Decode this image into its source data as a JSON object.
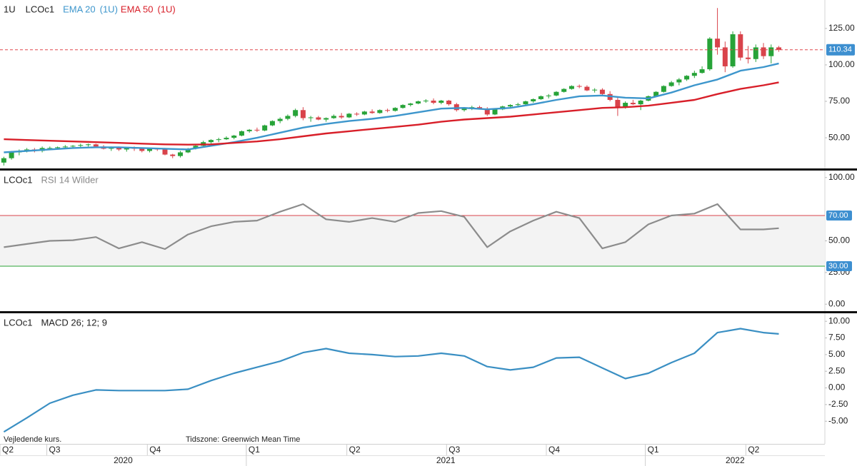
{
  "x_axis": {
    "xlim": [
      -0.5,
      107
    ],
    "xticks": [
      {
        "value": -0.5,
        "label": "Q2"
      },
      {
        "value": 5.6,
        "label": "Q3"
      },
      {
        "value": 18.7,
        "label": "Q4"
      },
      {
        "value": 31.6,
        "label": "Q1"
      },
      {
        "value": 44.7,
        "label": "Q2"
      },
      {
        "value": 57.7,
        "label": "Q3"
      },
      {
        "value": 70.7,
        "label": "Q4"
      },
      {
        "value": 83.6,
        "label": "Q1"
      },
      {
        "value": 96.7,
        "label": "Q2"
      }
    ],
    "years": [
      {
        "value": -13.5,
        "label": "2020"
      },
      {
        "value": 31.6,
        "label": "2021"
      },
      {
        "value": 83.6,
        "label": "2022"
      }
    ]
  },
  "notes": [
    "Vejledende kurs.",
    "Tidszone: Greenwich Mean Time"
  ],
  "chart_data": [
    {
      "type": "candlestick",
      "interval": "1U",
      "symbol": "LCOc1",
      "up_color": "#27a338",
      "down_color": "#d9434b",
      "ohlc": [
        [
          33,
          37,
          31,
          36
        ],
        [
          36,
          41,
          35,
          40
        ],
        [
          40,
          42,
          38,
          41
        ],
        [
          41,
          43,
          40,
          42
        ],
        [
          42,
          43,
          40,
          41
        ],
        [
          41,
          44,
          40,
          43
        ],
        [
          43,
          44,
          42,
          43
        ],
        [
          43,
          44,
          42,
          43.5
        ],
        [
          43.5,
          45,
          42.5,
          44
        ],
        [
          44,
          45,
          43,
          44.5
        ],
        [
          44.5,
          46,
          43.5,
          45
        ],
        [
          45,
          46,
          44,
          45.5
        ],
        [
          45.5,
          46,
          43,
          44
        ],
        [
          44,
          45,
          42,
          42.5
        ],
        [
          42.5,
          44,
          41,
          43.5
        ],
        [
          43.5,
          44,
          41,
          42
        ],
        [
          42,
          43.5,
          40.5,
          43
        ],
        [
          43,
          44,
          41,
          42.5
        ],
        [
          42.5,
          43,
          40,
          41
        ],
        [
          41,
          43,
          40,
          42.5
        ],
        [
          42.5,
          43,
          41,
          42
        ],
        [
          42,
          43,
          38,
          38.5
        ],
        [
          38.5,
          39,
          36,
          37.5
        ],
        [
          37.5,
          41,
          36.5,
          40
        ],
        [
          40,
          43,
          39.5,
          42.5
        ],
        [
          42.5,
          45,
          42,
          44.5
        ],
        [
          44.5,
          48,
          44,
          47
        ],
        [
          47,
          49,
          46,
          48.5
        ],
        [
          48.5,
          50,
          47,
          49
        ],
        [
          49,
          51,
          48.5,
          50
        ],
        [
          50,
          52,
          49,
          51.5
        ],
        [
          51.5,
          55,
          51,
          54.5
        ],
        [
          54.5,
          56,
          53.5,
          55.5
        ],
        [
          55.5,
          57,
          54,
          55
        ],
        [
          55,
          59,
          54.5,
          58.5
        ],
        [
          58.5,
          62,
          58,
          61.5
        ],
        [
          61.5,
          64,
          60,
          63
        ],
        [
          63,
          66,
          62,
          65
        ],
        [
          65,
          70,
          64,
          69
        ],
        [
          69,
          71,
          62,
          63.5
        ],
        [
          63.5,
          65,
          61,
          64
        ],
        [
          64,
          65,
          62,
          62.5
        ],
        [
          62.5,
          64,
          61,
          63.5
        ],
        [
          63.5,
          66,
          63,
          65
        ],
        [
          65,
          67,
          63,
          64
        ],
        [
          64,
          67,
          63.5,
          66.5
        ],
        [
          66.5,
          67.5,
          65,
          66
        ],
        [
          66,
          68.5,
          65.5,
          68
        ],
        [
          68,
          69.5,
          66.5,
          67
        ],
        [
          67,
          69.5,
          66.5,
          69
        ],
        [
          69,
          70,
          67.5,
          68.5
        ],
        [
          68.5,
          71,
          68,
          70.5
        ],
        [
          70.5,
          73,
          70,
          72.5
        ],
        [
          72.5,
          74,
          71.5,
          73.5
        ],
        [
          73.5,
          75.5,
          73,
          75
        ],
        [
          75,
          76.5,
          74,
          75.5
        ],
        [
          75.5,
          77,
          73,
          74
        ],
        [
          74,
          76,
          73,
          75.5
        ],
        [
          75.5,
          76,
          72,
          73
        ],
        [
          73,
          74,
          68,
          69
        ],
        [
          69,
          71,
          68,
          70.5
        ],
        [
          70.5,
          72,
          69,
          71
        ],
        [
          71,
          72,
          69.5,
          70
        ],
        [
          70,
          71,
          65,
          66
        ],
        [
          66,
          70,
          65.5,
          69.5
        ],
        [
          69.5,
          72,
          69,
          71.5
        ],
        [
          71.5,
          73,
          70.5,
          72.5
        ],
        [
          72.5,
          74,
          71.5,
          73
        ],
        [
          73,
          75.5,
          72.5,
          75
        ],
        [
          75,
          77,
          74,
          76.5
        ],
        [
          76.5,
          79,
          76,
          78.5
        ],
        [
          78.5,
          80,
          77,
          79
        ],
        [
          79,
          82,
          78.5,
          81.5
        ],
        [
          81.5,
          84,
          81,
          83.5
        ],
        [
          83.5,
          86,
          83,
          85.5
        ],
        [
          85.5,
          86.5,
          84,
          85
        ],
        [
          85,
          86,
          82,
          82.5
        ],
        [
          82.5,
          84,
          81,
          83
        ],
        [
          83,
          84,
          79,
          80
        ],
        [
          80,
          82,
          75,
          76
        ],
        [
          76,
          78,
          65,
          71
        ],
        [
          71,
          75,
          70,
          74
        ],
        [
          74,
          76,
          72.5,
          73
        ],
        [
          73,
          76,
          69,
          75.5
        ],
        [
          75.5,
          79,
          75,
          78.5
        ],
        [
          78.5,
          82,
          78,
          81.5
        ],
        [
          81.5,
          86,
          81,
          85.5
        ],
        [
          85.5,
          89,
          85,
          88
        ],
        [
          88,
          91,
          86,
          90
        ],
        [
          90,
          93,
          89,
          92.5
        ],
        [
          92.5,
          96,
          91,
          94.5
        ],
        [
          94.5,
          99,
          94,
          97
        ],
        [
          97,
          119,
          96,
          118
        ],
        [
          118,
          139,
          107,
          112
        ],
        [
          112,
          116,
          95,
          99
        ],
        [
          99,
          123,
          98,
          121
        ],
        [
          121,
          123,
          103,
          105
        ],
        [
          105,
          113,
          101,
          104
        ],
        [
          104,
          114,
          102,
          112
        ],
        [
          112,
          115,
          104,
          106
        ],
        [
          106,
          114,
          101,
          112
        ],
        [
          112,
          113,
          109,
          110.34
        ]
      ],
      "series": [
        {
          "name": "EMA 20",
          "period_label": "(1U)",
          "color": "#3d96cc",
          "x": [
            0,
            3,
            6,
            9,
            12,
            15,
            18,
            21,
            24,
            27,
            30,
            33,
            36,
            39,
            42,
            45,
            48,
            51,
            54,
            57,
            60,
            63,
            66,
            69,
            72,
            75,
            78,
            81,
            84,
            87,
            90,
            93,
            96,
            99,
            101
          ],
          "values": [
            40,
            41,
            42,
            43,
            43.5,
            43.5,
            43,
            42.5,
            42,
            44.5,
            47,
            50,
            53.5,
            57,
            59.5,
            61.5,
            63,
            65,
            67.5,
            70,
            70.5,
            69.5,
            70.5,
            73,
            76,
            78.5,
            79,
            77.5,
            77,
            81,
            86,
            90,
            96,
            98.5,
            101
          ]
        },
        {
          "name": "EMA 50",
          "period_label": "(1U)",
          "color": "#d81f29",
          "x": [
            0,
            3,
            6,
            9,
            12,
            15,
            18,
            21,
            24,
            27,
            30,
            33,
            36,
            39,
            42,
            45,
            48,
            51,
            54,
            57,
            60,
            63,
            66,
            69,
            72,
            75,
            78,
            81,
            84,
            87,
            90,
            93,
            96,
            99,
            101
          ],
          "values": [
            49,
            48.5,
            48,
            47.5,
            47,
            46.5,
            46,
            45.5,
            45.3,
            45.5,
            46.5,
            47.5,
            49,
            51,
            53,
            54.5,
            56,
            57.5,
            59,
            61,
            62.5,
            63.5,
            64.5,
            66,
            67.5,
            69,
            70.5,
            71,
            72,
            74,
            76,
            80,
            83.5,
            86,
            88
          ]
        }
      ],
      "ylim": [
        29,
        144.5
      ],
      "yticks": [
        {
          "value": 125,
          "label": "125.00"
        },
        {
          "value": 100,
          "label": "100.00"
        },
        {
          "value": 75,
          "label": "75.00"
        },
        {
          "value": 50,
          "label": "50.00"
        }
      ],
      "last_price": 110.34,
      "last_price_color": "#e0464b"
    },
    {
      "type": "line",
      "symbol": "LCOc1",
      "title": "RSI 14 Wilder",
      "title_color": "#8a8a8a",
      "series": [
        {
          "color": "#8c8c8c",
          "x": [
            0,
            3,
            6,
            9,
            12,
            15,
            18,
            21,
            24,
            27,
            30,
            33,
            36,
            39,
            42,
            45,
            48,
            51,
            54,
            57,
            60,
            63,
            66,
            69,
            72,
            75,
            78,
            81,
            84,
            87,
            90,
            93,
            96,
            99,
            101
          ],
          "values": [
            45,
            47.5,
            50,
            50.5,
            53,
            44,
            49,
            43.5,
            55,
            61.5,
            65,
            66,
            73,
            79,
            67,
            65,
            68,
            65,
            72,
            73.5,
            69,
            45,
            57.5,
            66,
            73,
            68,
            44,
            49,
            63,
            70,
            71.5,
            79,
            59,
            59,
            60
          ]
        }
      ],
      "ylim": [
        -5.5,
        105.5
      ],
      "yticks": [
        {
          "value": 100,
          "label": "100.00"
        },
        {
          "value": 50,
          "label": "50.00"
        },
        {
          "value": 25,
          "label": "25.00"
        },
        {
          "value": 0,
          "label": "0.00"
        }
      ],
      "levels": [
        {
          "value": 70,
          "label": "70.00",
          "color": "#d9434b"
        },
        {
          "value": 30,
          "label": "30.00",
          "color": "#2aa336"
        }
      ],
      "level_label_color": "#3d8fd0",
      "band_color": "#f3f3f3"
    },
    {
      "type": "line",
      "symbol": "LCOc1",
      "title": "MACD 26; 12; 9",
      "series": [
        {
          "color": "#3a8fc3",
          "x": [
            0,
            3,
            6,
            9,
            12,
            15,
            18,
            21,
            24,
            27,
            30,
            33,
            36,
            39,
            42,
            45,
            48,
            51,
            54,
            57,
            60,
            63,
            66,
            69,
            72,
            75,
            78,
            81,
            84,
            87,
            90,
            93,
            96,
            99,
            101
          ],
          "values": [
            -6.6,
            -4.5,
            -2.3,
            -1.1,
            -0.3,
            -0.4,
            -0.4,
            -0.4,
            -0.2,
            1.1,
            2.2,
            3.1,
            4.0,
            5.3,
            5.9,
            5.2,
            5.0,
            4.7,
            4.8,
            5.2,
            4.8,
            3.2,
            2.7,
            3.1,
            4.5,
            4.6,
            3.0,
            1.4,
            2.2,
            3.8,
            5.2,
            8.3,
            8.9,
            8.3,
            8.1
          ]
        }
      ],
      "ylim": [
        -8.4,
        11.2
      ],
      "yticks": [
        {
          "value": 10,
          "label": "10.00"
        },
        {
          "value": 7.5,
          "label": "7.50"
        },
        {
          "value": 5,
          "label": "5.00"
        },
        {
          "value": 2.5,
          "label": "2.50"
        },
        {
          "value": 0,
          "label": "0.00"
        },
        {
          "value": -2.5,
          "label": "-2.50"
        },
        {
          "value": -5,
          "label": "-5.00"
        }
      ]
    }
  ]
}
